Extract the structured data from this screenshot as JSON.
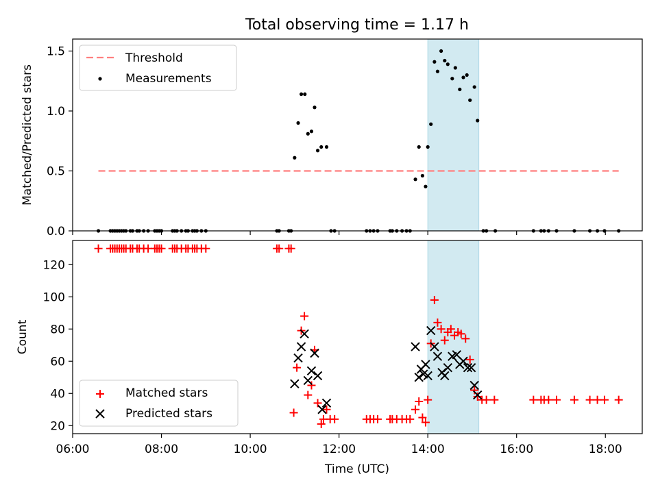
{
  "title": "Total observing time = 1.17 h",
  "colors": {
    "threshold": "#ff7f7f",
    "measurement": "#000000",
    "matched": "#ff0000",
    "predicted": "#000000",
    "highlight": "#add8e6"
  },
  "chart_data": [
    {
      "type": "scatter",
      "ylabel": "Matched/Predicted stars",
      "ylim": [
        0,
        1.6
      ],
      "yticks": [
        "0.0",
        "0.5",
        "1.0",
        "1.5"
      ],
      "xlim_hours": [
        6.0,
        18.83
      ],
      "highlight_span_hours": [
        14.0,
        15.15
      ],
      "legend": {
        "position": "top-left",
        "threshold_label": "Threshold",
        "measurements_label": "Measurements"
      },
      "threshold": {
        "value": 0.5,
        "x_range_hours": [
          6.58,
          18.3
        ]
      },
      "measurements": [
        [
          6.58,
          0
        ],
        [
          6.85,
          0
        ],
        [
          6.9,
          0
        ],
        [
          6.95,
          0
        ],
        [
          7.0,
          0
        ],
        [
          7.05,
          0
        ],
        [
          7.1,
          0
        ],
        [
          7.15,
          0
        ],
        [
          7.2,
          0
        ],
        [
          7.3,
          0
        ],
        [
          7.35,
          0
        ],
        [
          7.45,
          0
        ],
        [
          7.5,
          0
        ],
        [
          7.6,
          0
        ],
        [
          7.7,
          0
        ],
        [
          7.85,
          0
        ],
        [
          7.9,
          0
        ],
        [
          7.95,
          0
        ],
        [
          8.0,
          0
        ],
        [
          8.25,
          0
        ],
        [
          8.3,
          0
        ],
        [
          8.35,
          0
        ],
        [
          8.45,
          0
        ],
        [
          8.55,
          0
        ],
        [
          8.6,
          0
        ],
        [
          8.7,
          0
        ],
        [
          8.75,
          0
        ],
        [
          8.8,
          0
        ],
        [
          8.9,
          0
        ],
        [
          9.0,
          0
        ],
        [
          10.6,
          0
        ],
        [
          10.65,
          0
        ],
        [
          10.87,
          0
        ],
        [
          10.92,
          0
        ],
        [
          11.0,
          0.61
        ],
        [
          11.08,
          0.9
        ],
        [
          11.15,
          1.14
        ],
        [
          11.23,
          1.14
        ],
        [
          11.3,
          0.81
        ],
        [
          11.38,
          0.83
        ],
        [
          11.45,
          1.03
        ],
        [
          11.52,
          0.67
        ],
        [
          11.6,
          0.7
        ],
        [
          11.72,
          0.7
        ],
        [
          11.82,
          0
        ],
        [
          11.9,
          0
        ],
        [
          12.62,
          0
        ],
        [
          12.7,
          0
        ],
        [
          12.78,
          0
        ],
        [
          12.87,
          0
        ],
        [
          13.15,
          0
        ],
        [
          13.2,
          0
        ],
        [
          13.3,
          0
        ],
        [
          13.42,
          0
        ],
        [
          13.52,
          0
        ],
        [
          13.6,
          0
        ],
        [
          13.72,
          0.43
        ],
        [
          13.8,
          0.7
        ],
        [
          13.88,
          0.46
        ],
        [
          13.95,
          0.37
        ],
        [
          14.0,
          0.7
        ],
        [
          14.07,
          0.89
        ],
        [
          14.15,
          1.41
        ],
        [
          14.22,
          1.33
        ],
        [
          14.3,
          1.5
        ],
        [
          14.38,
          1.42
        ],
        [
          14.45,
          1.39
        ],
        [
          14.55,
          1.27
        ],
        [
          14.62,
          1.36
        ],
        [
          14.72,
          1.18
        ],
        [
          14.8,
          1.28
        ],
        [
          14.88,
          1.3
        ],
        [
          14.95,
          1.09
        ],
        [
          15.05,
          1.2
        ],
        [
          15.12,
          0.92
        ],
        [
          15.25,
          0
        ],
        [
          15.32,
          0
        ],
        [
          15.52,
          0
        ],
        [
          16.38,
          0
        ],
        [
          16.55,
          0
        ],
        [
          16.62,
          0
        ],
        [
          16.72,
          0
        ],
        [
          16.9,
          0
        ],
        [
          17.3,
          0
        ],
        [
          17.65,
          0
        ],
        [
          17.82,
          0
        ],
        [
          17.98,
          0
        ],
        [
          18.3,
          0
        ]
      ]
    },
    {
      "type": "scatter",
      "ylabel": "Count",
      "xlabel": "Time (UTC)",
      "ylim": [
        15,
        135
      ],
      "yticks": [
        "20",
        "40",
        "60",
        "80",
        "100",
        "120"
      ],
      "xlim_hours": [
        6.0,
        18.83
      ],
      "xticks": [
        "06:00",
        "08:00",
        "10:00",
        "12:00",
        "14:00",
        "16:00",
        "18:00"
      ],
      "highlight_span_hours": [
        14.0,
        15.15
      ],
      "legend": {
        "position": "bottom-left",
        "matched_label": "Matched stars",
        "predicted_label": "Predicted stars"
      },
      "matched": [
        [
          6.58,
          130
        ],
        [
          6.85,
          130
        ],
        [
          6.9,
          130
        ],
        [
          6.95,
          130
        ],
        [
          7.0,
          130
        ],
        [
          7.05,
          130
        ],
        [
          7.1,
          130
        ],
        [
          7.15,
          130
        ],
        [
          7.2,
          130
        ],
        [
          7.3,
          130
        ],
        [
          7.35,
          130
        ],
        [
          7.45,
          130
        ],
        [
          7.5,
          130
        ],
        [
          7.6,
          130
        ],
        [
          7.7,
          130
        ],
        [
          7.85,
          130
        ],
        [
          7.9,
          130
        ],
        [
          7.95,
          130
        ],
        [
          8.0,
          130
        ],
        [
          8.25,
          130
        ],
        [
          8.3,
          130
        ],
        [
          8.35,
          130
        ],
        [
          8.45,
          130
        ],
        [
          8.55,
          130
        ],
        [
          8.6,
          130
        ],
        [
          8.7,
          130
        ],
        [
          8.75,
          130
        ],
        [
          8.8,
          130
        ],
        [
          8.9,
          130
        ],
        [
          9.0,
          130
        ],
        [
          10.6,
          130
        ],
        [
          10.65,
          130
        ],
        [
          10.87,
          130
        ],
        [
          10.92,
          130
        ],
        [
          10.98,
          28
        ],
        [
          11.05,
          56
        ],
        [
          11.15,
          79
        ],
        [
          11.22,
          88
        ],
        [
          11.3,
          39
        ],
        [
          11.38,
          45
        ],
        [
          11.45,
          67
        ],
        [
          11.52,
          34
        ],
        [
          11.6,
          21
        ],
        [
          11.65,
          24
        ],
        [
          11.72,
          30
        ],
        [
          11.8,
          24
        ],
        [
          11.9,
          24
        ],
        [
          12.62,
          24
        ],
        [
          12.7,
          24
        ],
        [
          12.78,
          24
        ],
        [
          12.87,
          24
        ],
        [
          13.15,
          24
        ],
        [
          13.2,
          24
        ],
        [
          13.3,
          24
        ],
        [
          13.42,
          24
        ],
        [
          13.52,
          24
        ],
        [
          13.6,
          24
        ],
        [
          13.72,
          30
        ],
        [
          13.8,
          35
        ],
        [
          13.88,
          25
        ],
        [
          13.95,
          22
        ],
        [
          14.0,
          36
        ],
        [
          14.07,
          71
        ],
        [
          14.15,
          98
        ],
        [
          14.22,
          84
        ],
        [
          14.3,
          80
        ],
        [
          14.38,
          73
        ],
        [
          14.45,
          78
        ],
        [
          14.52,
          80
        ],
        [
          14.6,
          76
        ],
        [
          14.68,
          78
        ],
        [
          14.75,
          77
        ],
        [
          14.85,
          74
        ],
        [
          14.95,
          61
        ],
        [
          15.05,
          42
        ],
        [
          15.12,
          38
        ],
        [
          15.22,
          36
        ],
        [
          15.32,
          36
        ],
        [
          15.5,
          36
        ],
        [
          16.38,
          36
        ],
        [
          16.55,
          36
        ],
        [
          16.62,
          36
        ],
        [
          16.72,
          36
        ],
        [
          16.9,
          36
        ],
        [
          17.3,
          36
        ],
        [
          17.65,
          36
        ],
        [
          17.82,
          36
        ],
        [
          17.98,
          36
        ],
        [
          18.3,
          36
        ]
      ],
      "predicted": [
        [
          11.0,
          46
        ],
        [
          11.08,
          62
        ],
        [
          11.15,
          69
        ],
        [
          11.22,
          77
        ],
        [
          11.3,
          48
        ],
        [
          11.38,
          54
        ],
        [
          11.45,
          65
        ],
        [
          11.52,
          51
        ],
        [
          11.62,
          30
        ],
        [
          11.72,
          34
        ],
        [
          13.72,
          69
        ],
        [
          13.8,
          50
        ],
        [
          13.85,
          55
        ],
        [
          13.9,
          52
        ],
        [
          13.95,
          58
        ],
        [
          14.0,
          51
        ],
        [
          14.07,
          79
        ],
        [
          14.15,
          69
        ],
        [
          14.22,
          63
        ],
        [
          14.32,
          53
        ],
        [
          14.38,
          51
        ],
        [
          14.45,
          56
        ],
        [
          14.55,
          63
        ],
        [
          14.65,
          64
        ],
        [
          14.72,
          58
        ],
        [
          14.8,
          60
        ],
        [
          14.9,
          56
        ],
        [
          14.98,
          56
        ],
        [
          15.05,
          45
        ],
        [
          15.12,
          39
        ]
      ]
    }
  ]
}
